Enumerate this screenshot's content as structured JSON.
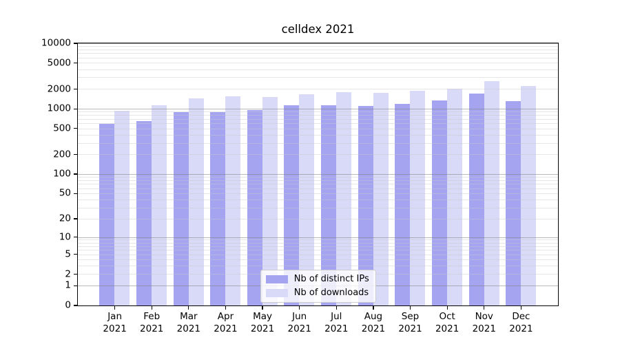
{
  "title": "celldex 2021",
  "colors": {
    "ips_bar": "#a4a4f0",
    "downloads_bar": "#d9d9f8",
    "axis": "#000000",
    "grid_major": "#b0b0b0",
    "grid_minor": "#e4e4e4",
    "legend_border": "#cccccc"
  },
  "legend": {
    "items": [
      {
        "label": "Nb of distinct IPs",
        "color": "#a4a4f0"
      },
      {
        "label": "Nb of downloads",
        "color": "#d9d9f8"
      }
    ]
  },
  "chart_data": {
    "type": "bar",
    "title": "celldex 2021",
    "categories": [
      "Jan 2021",
      "Feb 2021",
      "Mar 2021",
      "Apr 2021",
      "May 2021",
      "Jun 2021",
      "Jul 2021",
      "Aug 2021",
      "Sep 2021",
      "Oct 2021",
      "Nov 2021",
      "Dec 2021"
    ],
    "x_tick_line1": [
      "Jan",
      "Feb",
      "Mar",
      "Apr",
      "May",
      "Jun",
      "Jul",
      "Aug",
      "Sep",
      "Oct",
      "Nov",
      "Dec"
    ],
    "x_tick_line2": [
      "2021",
      "2021",
      "2021",
      "2021",
      "2021",
      "2021",
      "2021",
      "2021",
      "2021",
      "2021",
      "2021",
      "2021"
    ],
    "series": [
      {
        "name": "Nb of distinct IPs",
        "color": "#a4a4f0",
        "values": [
          600,
          660,
          900,
          900,
          960,
          1140,
          1150,
          1120,
          1190,
          1350,
          1720,
          1320
        ]
      },
      {
        "name": "Nb of downloads",
        "color": "#d9d9f8",
        "values": [
          930,
          1150,
          1440,
          1560,
          1510,
          1680,
          1790,
          1750,
          1880,
          2050,
          2640,
          2240
        ]
      }
    ],
    "xlabel": "",
    "ylabel": "",
    "y_scale": "log10(1+v)",
    "ylim": [
      0,
      10000
    ],
    "y_ticks": [
      0,
      1,
      2,
      5,
      10,
      20,
      50,
      100,
      200,
      500,
      1000,
      2000,
      5000,
      10000
    ],
    "y_major_gridlines": [
      1,
      10,
      100,
      1000,
      10000
    ],
    "grid": true,
    "legend_position": "lower center"
  }
}
